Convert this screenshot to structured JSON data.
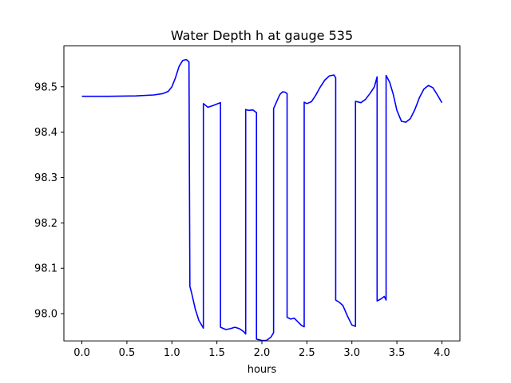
{
  "chart_data": {
    "type": "line",
    "title": "Water Depth h at gauge 535",
    "xlabel": "hours",
    "ylabel": "",
    "xlim": [
      -0.2,
      4.2
    ],
    "ylim": [
      97.94,
      98.59
    ],
    "xticks": [
      0.0,
      0.5,
      1.0,
      1.5,
      2.0,
      2.5,
      3.0,
      3.5,
      4.0
    ],
    "xtick_labels": [
      "0.0",
      "0.5",
      "1.0",
      "1.5",
      "2.0",
      "2.5",
      "3.0",
      "3.5",
      "4.0"
    ],
    "yticks": [
      98.0,
      98.1,
      98.2,
      98.3,
      98.4,
      98.5
    ],
    "ytick_labels": [
      "98.0",
      "98.1",
      "98.2",
      "98.3",
      "98.4",
      "98.5"
    ],
    "grid": false,
    "series": [
      {
        "color": "#0000ff",
        "x": [
          0.0,
          0.3,
          0.6,
          0.8,
          0.9,
          0.96,
          1.0,
          1.04,
          1.08,
          1.12,
          1.16,
          1.19,
          1.2,
          1.2,
          1.22,
          1.26,
          1.3,
          1.35,
          1.35,
          1.4,
          1.45,
          1.5,
          1.54,
          1.54,
          1.6,
          1.65,
          1.7,
          1.75,
          1.8,
          1.82,
          1.82,
          1.85,
          1.9,
          1.94,
          1.94,
          2.0,
          2.05,
          2.1,
          2.13,
          2.13,
          2.17,
          2.2,
          2.23,
          2.26,
          2.28,
          2.28,
          2.32,
          2.36,
          2.4,
          2.44,
          2.47,
          2.47,
          2.5,
          2.55,
          2.6,
          2.65,
          2.7,
          2.75,
          2.8,
          2.82,
          2.82,
          2.86,
          2.9,
          2.95,
          3.0,
          3.04,
          3.04,
          3.1,
          3.15,
          3.2,
          3.25,
          3.28,
          3.28,
          3.32,
          3.36,
          3.38,
          3.38,
          3.42,
          3.46,
          3.5,
          3.55,
          3.6,
          3.65,
          3.7,
          3.75,
          3.8,
          3.85,
          3.9,
          3.95,
          4.0
        ],
        "y": [
          98.479,
          98.479,
          98.48,
          98.482,
          98.485,
          98.49,
          98.5,
          98.52,
          98.545,
          98.558,
          98.56,
          98.555,
          98.06,
          98.06,
          98.045,
          98.01,
          97.985,
          97.968,
          98.463,
          98.455,
          98.458,
          98.462,
          98.465,
          97.97,
          97.965,
          97.967,
          97.97,
          97.967,
          97.96,
          97.955,
          98.45,
          98.448,
          98.449,
          98.443,
          97.944,
          97.941,
          97.941,
          97.948,
          97.958,
          98.452,
          98.47,
          98.483,
          98.489,
          98.488,
          98.485,
          97.992,
          97.988,
          97.99,
          97.982,
          97.974,
          97.971,
          98.466,
          98.463,
          98.467,
          98.482,
          98.5,
          98.515,
          98.524,
          98.526,
          98.52,
          98.03,
          98.025,
          98.018,
          97.995,
          97.975,
          97.972,
          98.468,
          98.465,
          98.472,
          98.485,
          98.5,
          98.522,
          98.028,
          98.032,
          98.038,
          98.03,
          98.525,
          98.51,
          98.483,
          98.448,
          98.424,
          98.422,
          98.43,
          98.45,
          98.476,
          98.495,
          98.503,
          98.498,
          98.482,
          98.465
        ]
      }
    ]
  }
}
